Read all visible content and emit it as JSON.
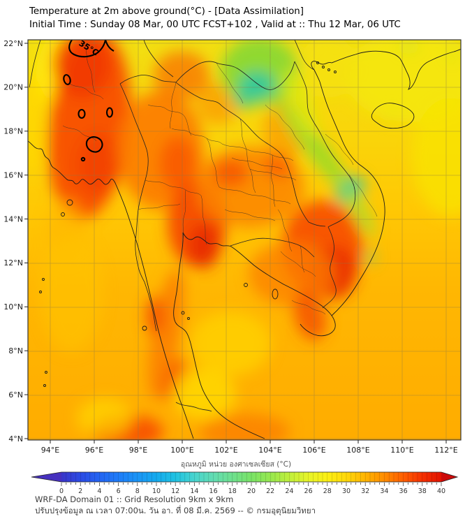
{
  "header": {
    "title": "Temperature at 2m above ground(°C) - [Data Assimilation]",
    "subtitle": "Initial Time : Sunday 08 Mar, 00 UTC FCST+102 , Valid at :: Thu 12 Mar, 06 UTC"
  },
  "map": {
    "y_ticks": [
      "22°N",
      "20°N",
      "18°N",
      "16°N",
      "14°N",
      "12°N",
      "10°N",
      "8°N",
      "6°N",
      "4°N"
    ],
    "x_ticks": [
      "94°E",
      "96°E",
      "98°E",
      "100°E",
      "102°E",
      "104°E",
      "106°E",
      "108°E",
      "110°E",
      "112°E"
    ],
    "contour_label": "35°C"
  },
  "colorbar": {
    "label": "อุณหภูมิ หน่วย องศาเซลเซียส (°C)",
    "unit": "°C",
    "min": 0,
    "max": 40,
    "tick_labels": [
      "0",
      "2",
      "4",
      "6",
      "8",
      "10",
      "12",
      "14",
      "16",
      "18",
      "20",
      "22",
      "24",
      "26",
      "28",
      "30",
      "32",
      "34",
      "36",
      "38",
      "40"
    ],
    "left_tip_color": "#4630BE",
    "right_tip_color": "#CC0A0A",
    "gradient": [
      [
        0.0,
        "#3A35C8"
      ],
      [
        0.05,
        "#2B4BE4"
      ],
      [
        0.1,
        "#2364F2"
      ],
      [
        0.15,
        "#1E7CF8"
      ],
      [
        0.2,
        "#1A94F6"
      ],
      [
        0.25,
        "#14AAEE"
      ],
      [
        0.3,
        "#20C2E2"
      ],
      [
        0.35,
        "#48D4CE"
      ],
      [
        0.4,
        "#62DCB2"
      ],
      [
        0.45,
        "#6EE08E"
      ],
      [
        0.5,
        "#79E366"
      ],
      [
        0.55,
        "#97E850"
      ],
      [
        0.6,
        "#BFEF3C"
      ],
      [
        0.65,
        "#E7F428"
      ],
      [
        0.7,
        "#FBEF14"
      ],
      [
        0.75,
        "#FFD80A"
      ],
      [
        0.8,
        "#FFB402"
      ],
      [
        0.85,
        "#FF8C00"
      ],
      [
        0.9,
        "#FF5E00"
      ],
      [
        0.95,
        "#F53000"
      ],
      [
        1.0,
        "#E21300"
      ]
    ]
  },
  "footer": {
    "line1": "WRF-DA Domain 01 :: Grid Resolution 9km x 9km",
    "line2": "ปรับปรุงข้อมูล ณ เวลา 07:00น. วัน อา. ที่ 08 มี.ค. 2569 -- © กรมอุตุนิยมวิทยา"
  }
}
